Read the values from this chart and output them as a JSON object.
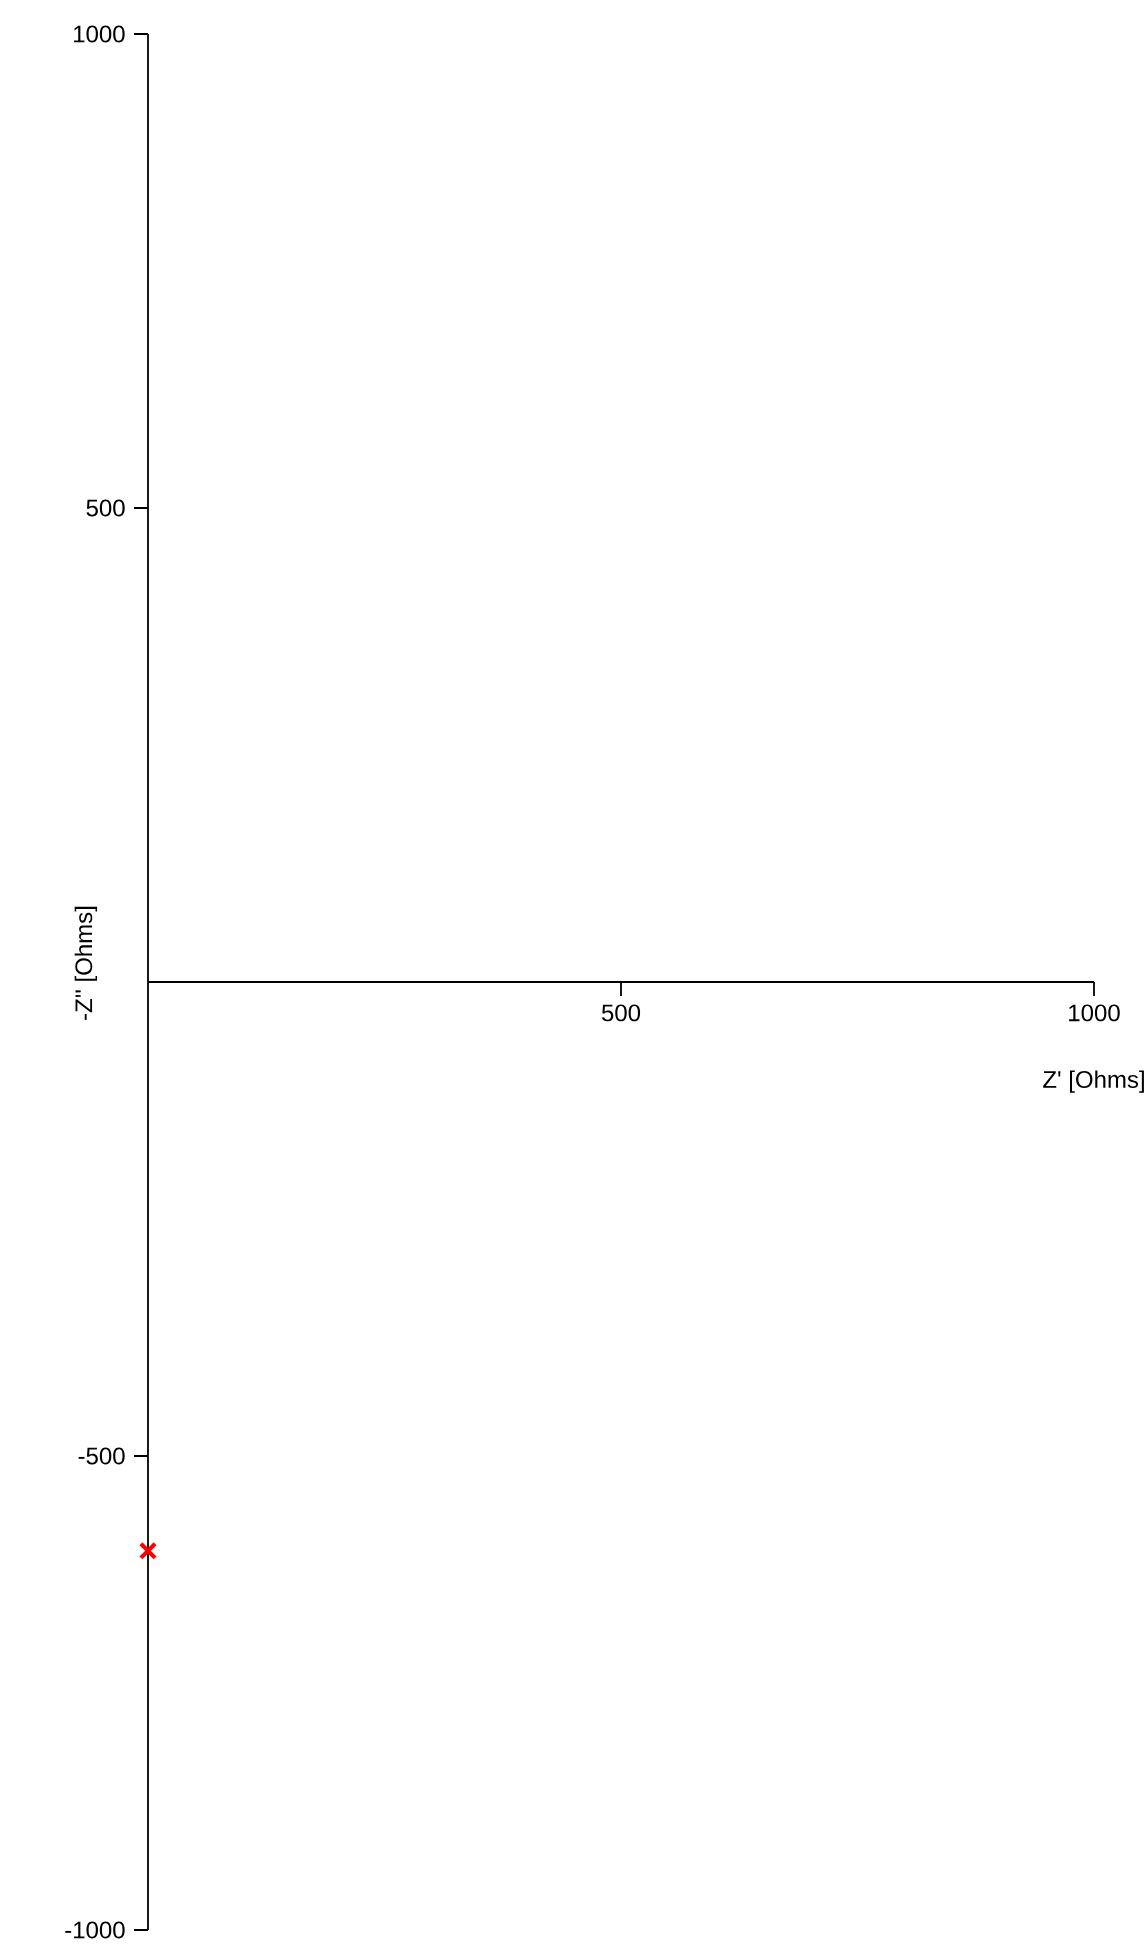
{
  "chart_data": {
    "type": "scatter",
    "xlabel": "Z' [Ohms]",
    "ylabel": "-Z'' [Ohms]",
    "xlim": [
      0,
      1000
    ],
    "ylim": [
      -1000,
      1000
    ],
    "xticks": [
      500,
      1000
    ],
    "yticks": [
      -1000,
      -500,
      500,
      1000
    ],
    "marker": "cross",
    "series": [
      {
        "color": "#ff0000",
        "x": [
          0
        ],
        "values": [
          -600
        ]
      }
    ]
  }
}
